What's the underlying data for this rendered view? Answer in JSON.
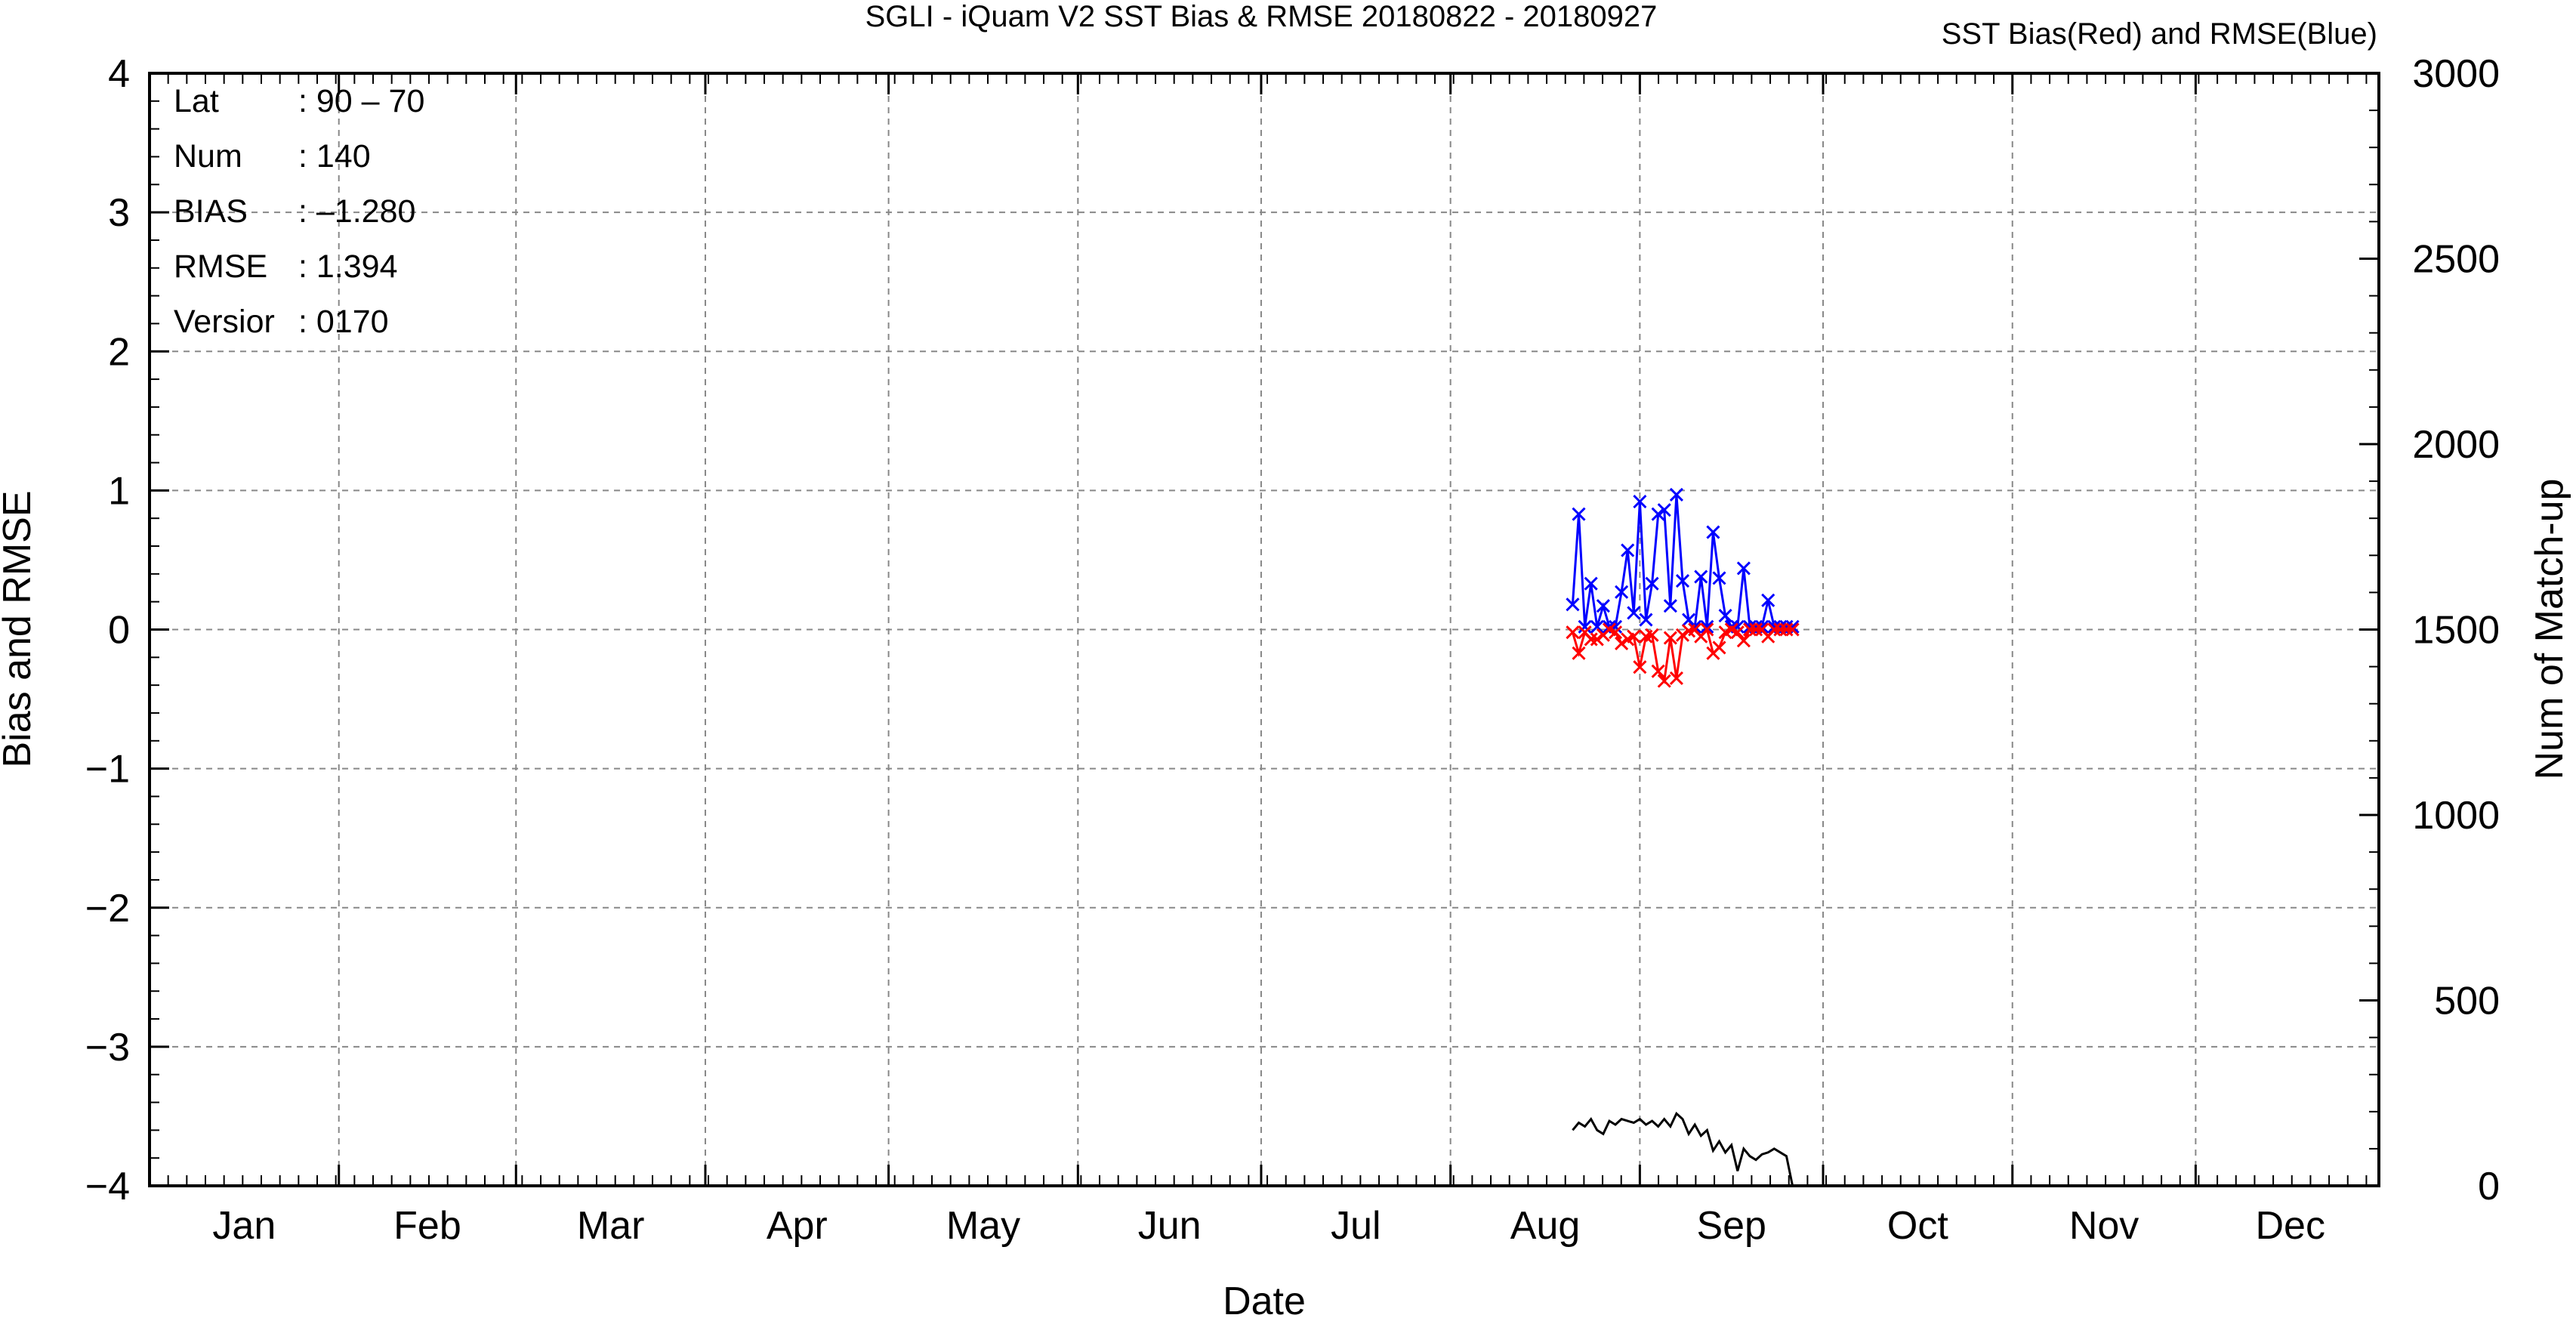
{
  "chart_data": {
    "type": "line",
    "title": "SGLI - iQuam V2 SST Bias & RMSE 20180822 - 20180927",
    "subtitle": "SST Bias(Red) and RMSE(Blue)",
    "xlabel": "Date",
    "ylabel": "Bias and RMSE",
    "y2label": "Num of Match-up",
    "x_tick_labels": [
      "Jan",
      "Feb",
      "Mar",
      "Apr",
      "May",
      "Jun",
      "Jul",
      "Aug",
      "Sep",
      "Oct",
      "Nov",
      "Dec"
    ],
    "xlim_day_of_year": [
      1,
      366
    ],
    "ylim": [
      -4,
      4
    ],
    "y_ticks": [
      "-4",
      "-3",
      "-2",
      "-1",
      "0",
      "1",
      "2",
      "3",
      "4"
    ],
    "y2lim": [
      0,
      3000
    ],
    "y2_ticks": [
      "0",
      "500",
      "1000",
      "1500",
      "2000",
      "2500",
      "3000"
    ],
    "grid": true,
    "info": [
      {
        "key": "Lat",
        "value": ": 90 - 70"
      },
      {
        "key": "Num",
        "value": ": 140"
      },
      {
        "key": "BIAS",
        "value": ": -1.280"
      },
      {
        "key": "RMSE",
        "value": ": 1.394"
      },
      {
        "key": "Versior",
        "value": ": 0170"
      }
    ],
    "series": [
      {
        "color": "#0000ff",
        "marker": "x",
        "axis": "left",
        "x": [
          234,
          235,
          236,
          237,
          238,
          239,
          240,
          241,
          242,
          243,
          244,
          245,
          246,
          247,
          248,
          249,
          250,
          251,
          252,
          253,
          254,
          255,
          256,
          257,
          258,
          259,
          260,
          261,
          262,
          263,
          264,
          265,
          266,
          267,
          268,
          269,
          270
        ],
        "values": [
          0.18,
          0.83,
          0.02,
          0.33,
          0.02,
          0.17,
          0.02,
          0.02,
          0.27,
          0.57,
          0.12,
          0.92,
          0.07,
          0.33,
          0.83,
          0.86,
          0.17,
          0.97,
          0.35,
          0.07,
          0.02,
          0.38,
          0.02,
          0.7,
          0.37,
          0.1,
          0.02,
          0.02,
          0.44,
          0.02,
          0.02,
          0.02,
          0.21,
          0.02,
          0.02,
          0.02,
          0.02
        ]
      },
      {
        "color": "#ff0000",
        "marker": "x",
        "axis": "left",
        "x": [
          234,
          235,
          236,
          237,
          238,
          239,
          240,
          241,
          242,
          243,
          244,
          245,
          246,
          247,
          248,
          249,
          250,
          251,
          252,
          253,
          254,
          255,
          256,
          257,
          258,
          259,
          260,
          261,
          262,
          263,
          264,
          265,
          266,
          267,
          268,
          269,
          270
        ],
        "values": [
          -0.02,
          -0.17,
          -0.02,
          -0.07,
          -0.07,
          -0.04,
          0.0,
          -0.02,
          -0.1,
          -0.07,
          -0.05,
          -0.27,
          -0.05,
          -0.04,
          -0.3,
          -0.37,
          -0.06,
          -0.35,
          -0.04,
          -0.01,
          0.0,
          -0.05,
          0.0,
          -0.17,
          -0.13,
          -0.02,
          0.0,
          -0.02,
          -0.08,
          0.0,
          0.0,
          0.0,
          -0.05,
          0.0,
          0.0,
          0.0,
          0.0
        ]
      },
      {
        "color": "#000000",
        "marker": "none",
        "axis": "right",
        "x": [
          234,
          235,
          236,
          237,
          238,
          239,
          240,
          241,
          242,
          243,
          244,
          245,
          246,
          247,
          248,
          249,
          250,
          251,
          252,
          253,
          254,
          255,
          256,
          257,
          258,
          259,
          260,
          261,
          262,
          263,
          264,
          265,
          266,
          267,
          268,
          269,
          270
        ],
        "values": [
          150,
          170,
          160,
          180,
          150,
          140,
          175,
          165,
          180,
          175,
          170,
          180,
          165,
          175,
          160,
          180,
          160,
          195,
          180,
          140,
          165,
          135,
          150,
          95,
          120,
          90,
          110,
          40,
          100,
          80,
          70,
          85,
          90,
          100,
          90,
          80,
          0
        ]
      }
    ]
  }
}
